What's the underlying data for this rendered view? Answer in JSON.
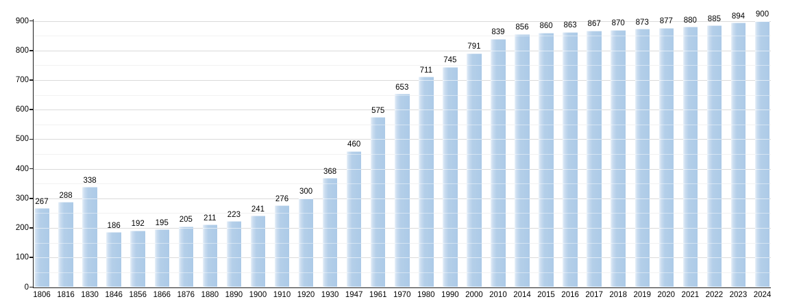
{
  "chart_data": {
    "type": "bar",
    "categories": [
      "1806",
      "1816",
      "1830",
      "1846",
      "1856",
      "1866",
      "1876",
      "1880",
      "1890",
      "1900",
      "1910",
      "1920",
      "1930",
      "1947",
      "1961",
      "1970",
      "1980",
      "1990",
      "2000",
      "2010",
      "2014",
      "2015",
      "2016",
      "2017",
      "2018",
      "2019",
      "2020",
      "2021",
      "2022",
      "2023",
      "2024"
    ],
    "values": [
      267,
      288,
      338,
      186,
      192,
      195,
      205,
      211,
      223,
      241,
      276,
      300,
      368,
      460,
      575,
      653,
      711,
      745,
      791,
      839,
      856,
      860,
      863,
      867,
      870,
      873,
      877,
      880,
      885,
      894,
      900
    ],
    "value_labels": [
      "267",
      "288",
      "338",
      "186",
      "192",
      "195",
      "205",
      "211",
      "223",
      "241",
      "276",
      "300",
      "368",
      "460",
      "575",
      "653",
      "711",
      "745",
      "791",
      "839",
      "856",
      "860",
      "863",
      "867",
      "870",
      "873",
      "877",
      "880",
      "885",
      "894",
      "900"
    ],
    "xlabel": "",
    "ylabel": "",
    "ylim": [
      0,
      900
    ],
    "y_major_step": 100,
    "y_minor_step": 50,
    "y_tick_labels": [
      "0",
      "100",
      "200",
      "300",
      "400",
      "500",
      "600",
      "700",
      "800",
      "900"
    ],
    "grid": "on",
    "legend": "none",
    "colors": {
      "bar_main": "#accae7",
      "bar_edge_light": "#e9f1f9",
      "grid_major": "#a3a3a3",
      "grid_minor": "#e6e6e6",
      "grid_over_bars": "rgba(255,255,255,0.6)",
      "axis": "#1a1a1a",
      "text": "#000000",
      "background": "#ffffff"
    }
  }
}
